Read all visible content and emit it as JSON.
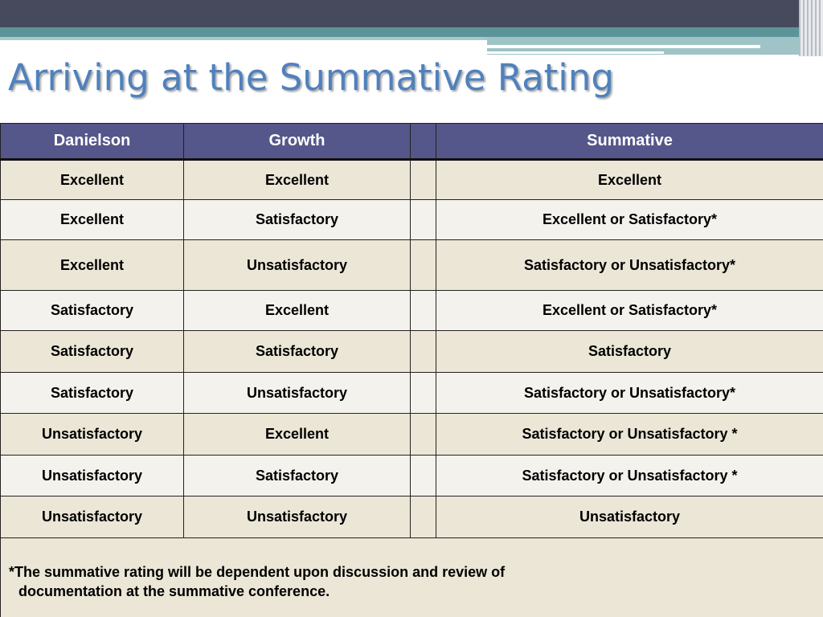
{
  "title": "Arriving at the Summative Rating",
  "table": {
    "headers": [
      "Danielson",
      "Growth",
      "",
      "Summative"
    ],
    "rows": [
      {
        "danielson": "Excellent",
        "growth": "Excellent",
        "summative": "Excellent"
      },
      {
        "danielson": "Excellent",
        "growth": "Satisfactory",
        "summative": "Excellent or Satisfactory*"
      },
      {
        "danielson": "Excellent",
        "growth": "Unsatisfactory",
        "summative": "Satisfactory or Unsatisfactory*"
      },
      {
        "danielson": "Satisfactory",
        "growth": "Excellent",
        "summative": "Excellent or Satisfactory*"
      },
      {
        "danielson": "Satisfactory",
        "growth": "Satisfactory",
        "summative": "Satisfactory"
      },
      {
        "danielson": "Satisfactory",
        "growth": "Unsatisfactory",
        "summative": "Satisfactory or Unsatisfactory*"
      },
      {
        "danielson": "Unsatisfactory",
        "growth": "Excellent",
        "summative": "Satisfactory or Unsatisfactory *"
      },
      {
        "danielson": "Unsatisfactory",
        "growth": "Satisfactory",
        "summative": "Satisfactory or Unsatisfactory *"
      },
      {
        "danielson": "Unsatisfactory",
        "growth": "Unsatisfactory",
        "summative": "Unsatisfactory"
      }
    ],
    "footnote": {
      "line1": "*The summative rating will be dependent upon discussion and review of",
      "line2": "documentation at the summative conference."
    }
  },
  "colors": {
    "title": "#4f81bd",
    "header_bg": "#55568a",
    "row_odd": "#ebe6d6",
    "row_even": "#f4f2ec",
    "band_dark": "#474a5c",
    "band_teal": "#5b9499"
  }
}
